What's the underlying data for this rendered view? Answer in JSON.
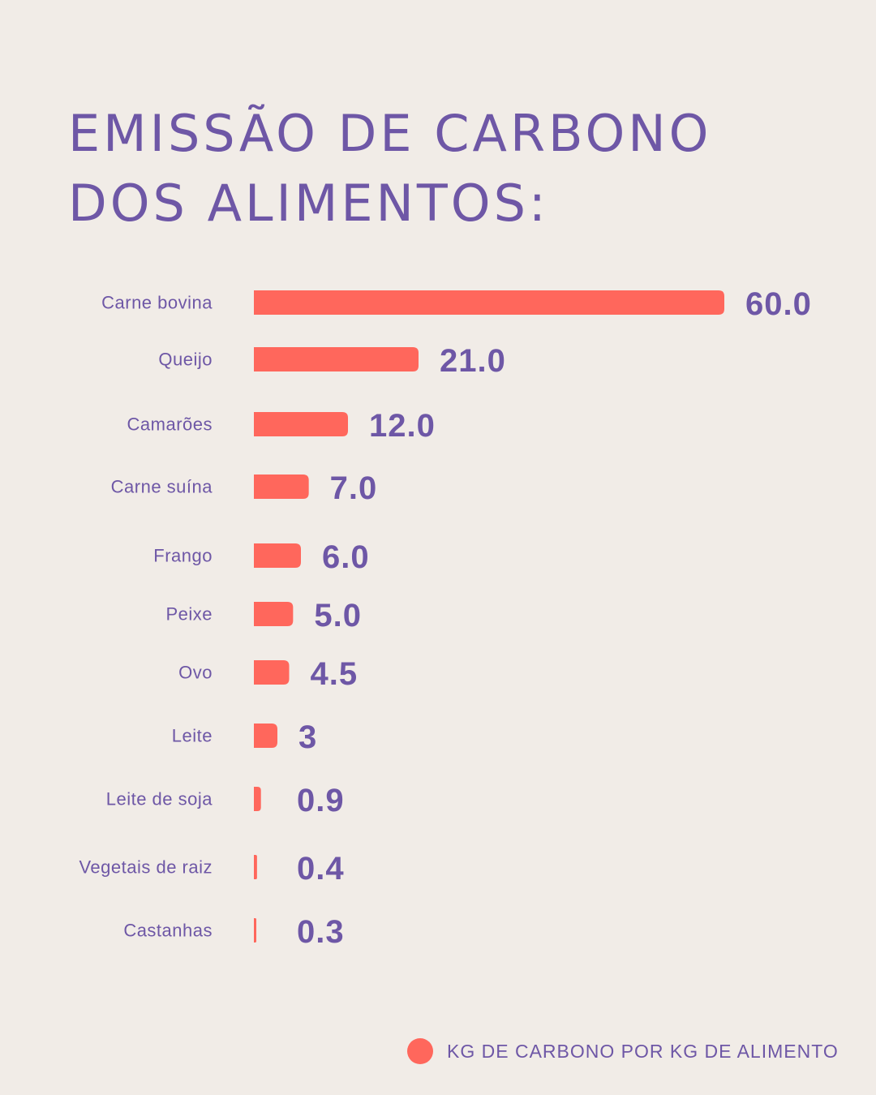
{
  "colors": {
    "background": "#f1ece7",
    "bar": "#ff675c",
    "text": "#6e57a6"
  },
  "header": {
    "title_line1": "EMISSÃO DE CARBONO",
    "title_line2": "DOS ALIMENTOS:"
  },
  "chart_data": {
    "type": "bar",
    "orientation": "horizontal",
    "title": "EMISSÃO DE CARBONO DOS ALIMENTOS:",
    "categories": [
      "Carne bovina",
      "Queijo",
      "Camarões",
      "Carne suína",
      "Frango",
      "Peixe",
      "Ovo",
      "Leite",
      "Leite de soja",
      "Vegetais de raiz",
      "Castanhas"
    ],
    "values": [
      60.0,
      21.0,
      12.0,
      7.0,
      6.0,
      5.0,
      4.5,
      3,
      0.9,
      0.4,
      0.3
    ],
    "value_labels": [
      "60.0",
      "21.0",
      "12.0",
      "7.0",
      "6.0",
      "5.0",
      "4.5",
      "3",
      "0.9",
      "0.4",
      "0.3"
    ],
    "series": [
      {
        "name": "KG DE CARBONO POR KG DE ALIMENTO",
        "values": [
          60.0,
          21.0,
          12.0,
          7.0,
          6.0,
          5.0,
          4.5,
          3,
          0.9,
          0.4,
          0.3
        ]
      }
    ],
    "xlim": [
      0,
      60
    ],
    "grid": false,
    "legend_position": "bottom-right"
  },
  "legend": {
    "label": "KG DE CARBONO POR KG DE ALIMENTO"
  }
}
